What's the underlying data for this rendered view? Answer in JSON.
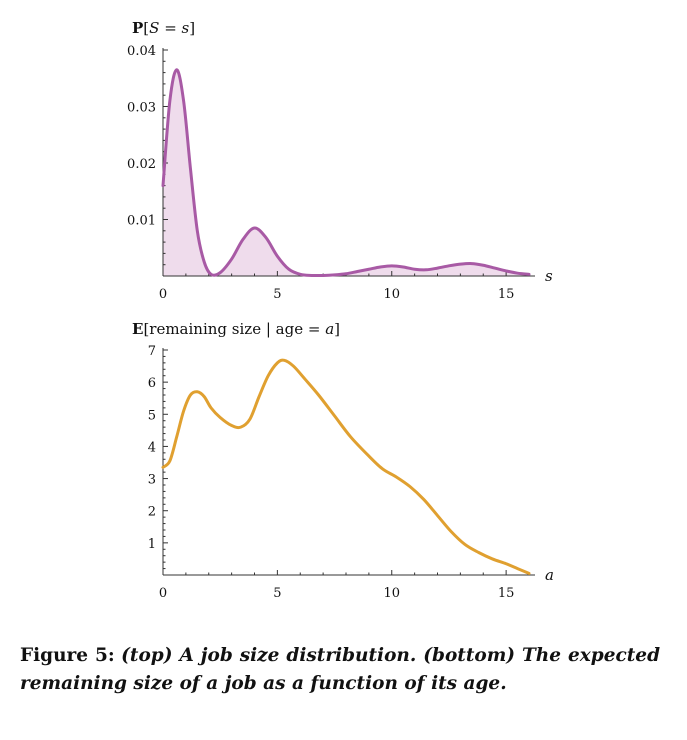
{
  "chart_data": [
    {
      "type": "area",
      "ylabel": "P[S = s]",
      "xlabel": "s",
      "xlim": [
        0,
        16
      ],
      "ylim": [
        0,
        0.04
      ],
      "xticks": [
        0,
        5,
        10,
        15
      ],
      "yticks": [
        0.01,
        0.02,
        0.03,
        0.04
      ],
      "ytick_labels": [
        "0.01",
        "0.02",
        "0.03",
        "0.04"
      ],
      "line_color": "#a85aa5",
      "fill_color": "#efdcec",
      "x": [
        0,
        0.3,
        0.6,
        0.9,
        1.2,
        1.5,
        1.8,
        2.1,
        2.5,
        3.0,
        3.5,
        4.0,
        4.5,
        5.0,
        5.5,
        6.0,
        6.5,
        7.0,
        7.5,
        8.0,
        8.5,
        9.0,
        9.5,
        10.0,
        10.5,
        11.0,
        11.5,
        12.0,
        12.5,
        13.0,
        13.5,
        14.0,
        14.5,
        15.0,
        15.5,
        16.0
      ],
      "y": [
        0.016,
        0.031,
        0.0365,
        0.031,
        0.019,
        0.008,
        0.0025,
        0.0003,
        0.0006,
        0.003,
        0.0065,
        0.0085,
        0.0068,
        0.0035,
        0.0012,
        0.0003,
        0.0001,
        0.0001,
        0.0002,
        0.0004,
        0.0008,
        0.0012,
        0.0016,
        0.0018,
        0.0016,
        0.0012,
        0.0011,
        0.0014,
        0.0018,
        0.0021,
        0.0022,
        0.0019,
        0.0014,
        0.0009,
        0.0005,
        0.0003
      ]
    },
    {
      "type": "line",
      "ylabel": "E[remaining size | age = a]",
      "xlabel": "a",
      "xlim": [
        0,
        16
      ],
      "ylim": [
        0,
        7
      ],
      "xticks": [
        0,
        5,
        10,
        15
      ],
      "yticks": [
        1,
        2,
        3,
        4,
        5,
        6,
        7
      ],
      "ytick_labels": [
        "1",
        "2",
        "3",
        "4",
        "5",
        "6",
        "7"
      ],
      "line_color": "#e0a030",
      "x": [
        0,
        0.3,
        0.6,
        0.9,
        1.2,
        1.5,
        1.8,
        2.1,
        2.5,
        3.0,
        3.4,
        3.8,
        4.2,
        4.6,
        5.0,
        5.3,
        5.7,
        6.2,
        6.8,
        7.5,
        8.2,
        9.0,
        9.6,
        10.2,
        10.8,
        11.4,
        12.0,
        12.6,
        13.2,
        13.8,
        14.4,
        15.0,
        15.5,
        16.0
      ],
      "y": [
        3.35,
        3.55,
        4.3,
        5.1,
        5.6,
        5.7,
        5.55,
        5.2,
        4.9,
        4.65,
        4.6,
        4.85,
        5.55,
        6.2,
        6.6,
        6.68,
        6.5,
        6.1,
        5.6,
        4.95,
        4.3,
        3.7,
        3.3,
        3.05,
        2.75,
        2.35,
        1.85,
        1.35,
        0.95,
        0.7,
        0.5,
        0.35,
        0.2,
        0.05
      ]
    }
  ],
  "caption": {
    "label": "Figure 5:",
    "text": "(top) A job size distribution. (bottom) The expected remaining size of a job as a function of its age."
  }
}
